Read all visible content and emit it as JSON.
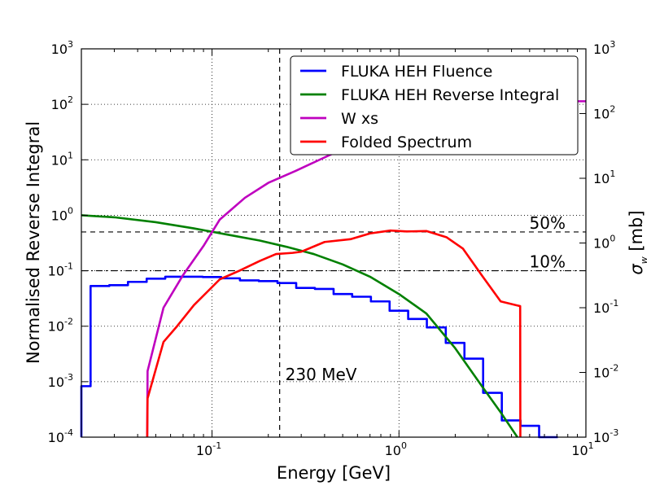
{
  "chart_data": {
    "type": "line",
    "title": "",
    "xlabel": "Energy [GeV]",
    "ylabel": "Normalised Reverse Integral",
    "y2label": "σ_w [mb]",
    "xscale": "log",
    "yscale": "log",
    "y2scale": "log",
    "xlim": [
      0.02,
      10
    ],
    "ylim": [
      0.0001,
      1000
    ],
    "y2lim": [
      0.001,
      1000
    ],
    "grid": true,
    "legend_position": "top-right",
    "x_ticks": [
      {
        "value": 0.1,
        "base": "10",
        "exp": "-1"
      },
      {
        "value": 1,
        "base": "10",
        "exp": "0"
      },
      {
        "value": 10,
        "base": "10",
        "exp": "1"
      }
    ],
    "y_ticks": [
      {
        "value": 0.0001,
        "base": "10",
        "exp": "-4"
      },
      {
        "value": 0.001,
        "base": "10",
        "exp": "-3"
      },
      {
        "value": 0.01,
        "base": "10",
        "exp": "-2"
      },
      {
        "value": 0.1,
        "base": "10",
        "exp": "-1"
      },
      {
        "value": 1,
        "base": "10",
        "exp": "0"
      },
      {
        "value": 10,
        "base": "10",
        "exp": "1"
      },
      {
        "value": 100,
        "base": "10",
        "exp": "2"
      },
      {
        "value": 1000,
        "base": "10",
        "exp": "3"
      }
    ],
    "y2_ticks": [
      {
        "value": 0.001,
        "base": "10",
        "exp": "-3"
      },
      {
        "value": 0.01,
        "base": "10",
        "exp": "-2"
      },
      {
        "value": 0.1,
        "base": "10",
        "exp": "-1"
      },
      {
        "value": 1,
        "base": "10",
        "exp": "0"
      },
      {
        "value": 10,
        "base": "10",
        "exp": "1"
      },
      {
        "value": 100,
        "base": "10",
        "exp": "2"
      },
      {
        "value": 1000,
        "base": "10",
        "exp": "3"
      }
    ],
    "series": [
      {
        "name": "FLUKA HEH Fluence",
        "color": "#0000ff",
        "style": "step",
        "axis": "left",
        "x": [
          0.02,
          0.0224,
          0.0282,
          0.0355,
          0.0447,
          0.0562,
          0.0708,
          0.0891,
          0.112,
          0.141,
          0.178,
          0.224,
          0.282,
          0.355,
          0.447,
          0.562,
          0.708,
          0.891,
          1.12,
          1.41,
          1.78,
          2.24,
          2.82,
          3.55,
          4.47,
          5.62
        ],
        "y": [
          0.00083,
          0.053,
          0.055,
          0.063,
          0.072,
          0.078,
          0.078,
          0.077,
          0.073,
          0.067,
          0.065,
          0.06,
          0.049,
          0.047,
          0.038,
          0.034,
          0.028,
          0.019,
          0.0135,
          0.0095,
          0.005,
          0.0026,
          0.00063,
          0.0002,
          0.00016,
          0.0001
        ]
      },
      {
        "name": "FLUKA HEH Reverse Integral",
        "color": "#008000",
        "style": "line",
        "axis": "left",
        "x": [
          0.02,
          0.03,
          0.05,
          0.08,
          0.12,
          0.18,
          0.25,
          0.35,
          0.5,
          0.7,
          1.0,
          1.4,
          2.0,
          2.8,
          3.5,
          4.3
        ],
        "y": [
          1.0,
          0.92,
          0.75,
          0.58,
          0.45,
          0.35,
          0.27,
          0.2,
          0.13,
          0.078,
          0.038,
          0.017,
          0.004,
          0.0008,
          0.00028,
          0.0001
        ]
      },
      {
        "name": "W xs",
        "color": "#bf00bf",
        "style": "line",
        "axis": "right",
        "x": [
          0.045,
          0.0452,
          0.055,
          0.07,
          0.09,
          0.11,
          0.15,
          0.2,
          0.28,
          0.4,
          0.55,
          0.7,
          0.9,
          1.2,
          1.7,
          2.5,
          3.2,
          4.0,
          5.0,
          10
        ],
        "y": [
          0.001,
          0.0105,
          0.1,
          0.32,
          0.9,
          2.3,
          5.0,
          8.5,
          13.0,
          21.0,
          32.0,
          43.0,
          53.0,
          72.0,
          100.0,
          140.0,
          153.0,
          155.0,
          155.0,
          155.0
        ]
      },
      {
        "name": "Folded Spectrum",
        "color": "#ff0000",
        "style": "line",
        "axis": "left",
        "x": [
          0.045,
          0.0452,
          0.055,
          0.065,
          0.08,
          0.11,
          0.14,
          0.18,
          0.22,
          0.27,
          0.3,
          0.4,
          0.55,
          0.7,
          0.9,
          1.1,
          1.4,
          1.8,
          2.2,
          2.8,
          3.5,
          4.45,
          4.46
        ],
        "y": [
          0.0001,
          0.0005,
          0.0052,
          0.01,
          0.024,
          0.07,
          0.1,
          0.15,
          0.2,
          0.21,
          0.22,
          0.33,
          0.37,
          0.47,
          0.53,
          0.51,
          0.52,
          0.4,
          0.25,
          0.079,
          0.028,
          0.023,
          0.0001
        ]
      }
    ],
    "reference_lines": [
      {
        "orientation": "vertical",
        "value": 0.23,
        "style": "dashed",
        "label": "230 MeV"
      },
      {
        "orientation": "horizontal",
        "value": 0.5,
        "style": "dashed",
        "label": "50%"
      },
      {
        "orientation": "horizontal",
        "value": 0.1,
        "style": "dashdot",
        "label": "10%"
      }
    ]
  }
}
